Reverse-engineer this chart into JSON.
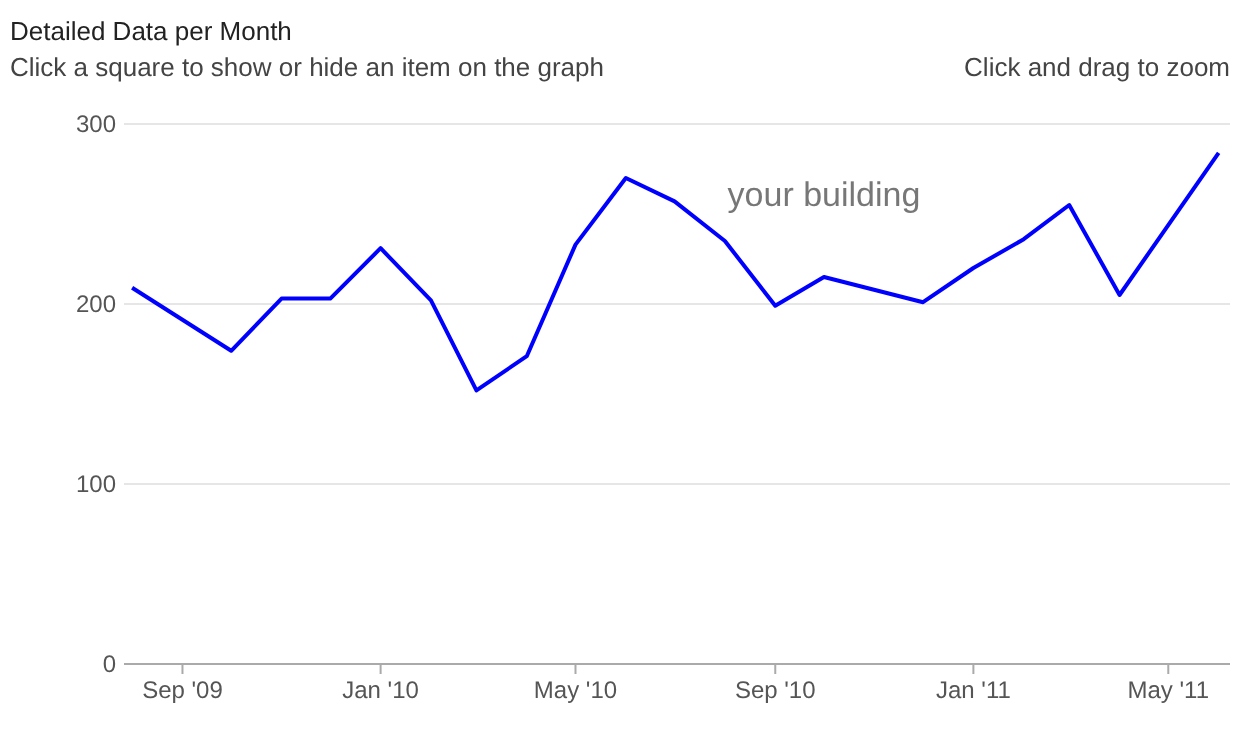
{
  "chart_data": {
    "type": "line",
    "title": "Detailed Data per Month",
    "subtitle": "Click a square to show or hide an item on the graph",
    "annotations": [
      "Click and drag to zoom"
    ],
    "x": [
      "2009-08",
      "2009-10",
      "2009-11",
      "2009-12",
      "2010-01",
      "2010-02",
      "2010-03",
      "2010-04",
      "2010-05",
      "2010-06",
      "2010-07",
      "2010-08",
      "2010-09",
      "2010-10",
      "2010-12",
      "2011-01",
      "2011-02",
      "2011-03",
      "2011-04",
      "2011-06"
    ],
    "series": [
      {
        "name": "your building",
        "color": "#0000ff",
        "values": [
          209,
          174,
          203,
          203,
          231,
          202,
          152,
          171,
          233,
          270,
          257,
          235,
          199,
          215,
          201,
          220,
          236,
          255,
          205,
          284
        ]
      }
    ],
    "xlim": [
      "2009-07-27",
      "2011-06-08"
    ],
    "xticks": [
      {
        "value": "2009-09",
        "label": "Sep '09"
      },
      {
        "value": "2010-01",
        "label": "Jan '10"
      },
      {
        "value": "2010-05",
        "label": "May '10"
      },
      {
        "value": "2010-09",
        "label": "Sep '10"
      },
      {
        "value": "2011-01",
        "label": "Jan '11"
      },
      {
        "value": "2011-05",
        "label": "May '11"
      }
    ],
    "ylim": [
      0,
      300
    ],
    "yticks": [
      0,
      100,
      200,
      300
    ],
    "grid": "y",
    "legend": false,
    "line_style": "solid",
    "marker": "none"
  }
}
